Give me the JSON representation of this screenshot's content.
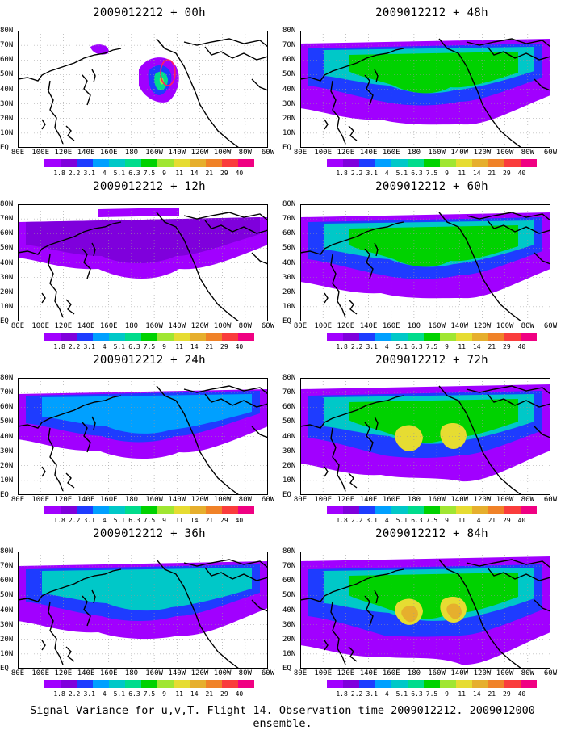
{
  "caption": "Signal Variance for u,v,T. Flight 14. Observation time 2009012212. 2009012000 ensemble.",
  "lat_labels": [
    "80N",
    "70N",
    "60N",
    "50N",
    "40N",
    "30N",
    "20N",
    "10N",
    "EQ"
  ],
  "lon_labels": [
    "80E",
    "100E",
    "120E",
    "140E",
    "160E",
    "180",
    "160W",
    "140W",
    "120W",
    "100W",
    "80W",
    "60W"
  ],
  "colorbar": {
    "colors": [
      "#a100ff",
      "#7f00dc",
      "#1e3cff",
      "#00a0ff",
      "#00c8c8",
      "#00dc8c",
      "#00d200",
      "#a0e632",
      "#e6dc32",
      "#e6af2d",
      "#f08228",
      "#fa3c3c",
      "#f00082"
    ],
    "ticks": [
      "1.8",
      "2.2",
      "3.1",
      "4",
      "5.1",
      "6.3",
      "7.5",
      "9",
      "11",
      "14",
      "21",
      "29",
      "40"
    ]
  },
  "panels": [
    {
      "id": "p00",
      "title": "2009012212 + 00h",
      "col": 0,
      "row": 0,
      "level": 0
    },
    {
      "id": "p12",
      "title": "2009012212 + 12h",
      "col": 0,
      "row": 1,
      "level": 1
    },
    {
      "id": "p24",
      "title": "2009012212 + 24h",
      "col": 0,
      "row": 2,
      "level": 2
    },
    {
      "id": "p36",
      "title": "2009012212 + 36h",
      "col": 0,
      "row": 3,
      "level": 3
    },
    {
      "id": "p48",
      "title": "2009012212 + 48h",
      "col": 1,
      "row": 0,
      "level": 4
    },
    {
      "id": "p60",
      "title": "2009012212 + 60h",
      "col": 1,
      "row": 1,
      "level": 4
    },
    {
      "id": "p72",
      "title": "2009012212 + 72h",
      "col": 1,
      "row": 2,
      "level": 5
    },
    {
      "id": "p84",
      "title": "2009012212 + 84h",
      "col": 1,
      "row": 3,
      "level": 6
    }
  ]
}
